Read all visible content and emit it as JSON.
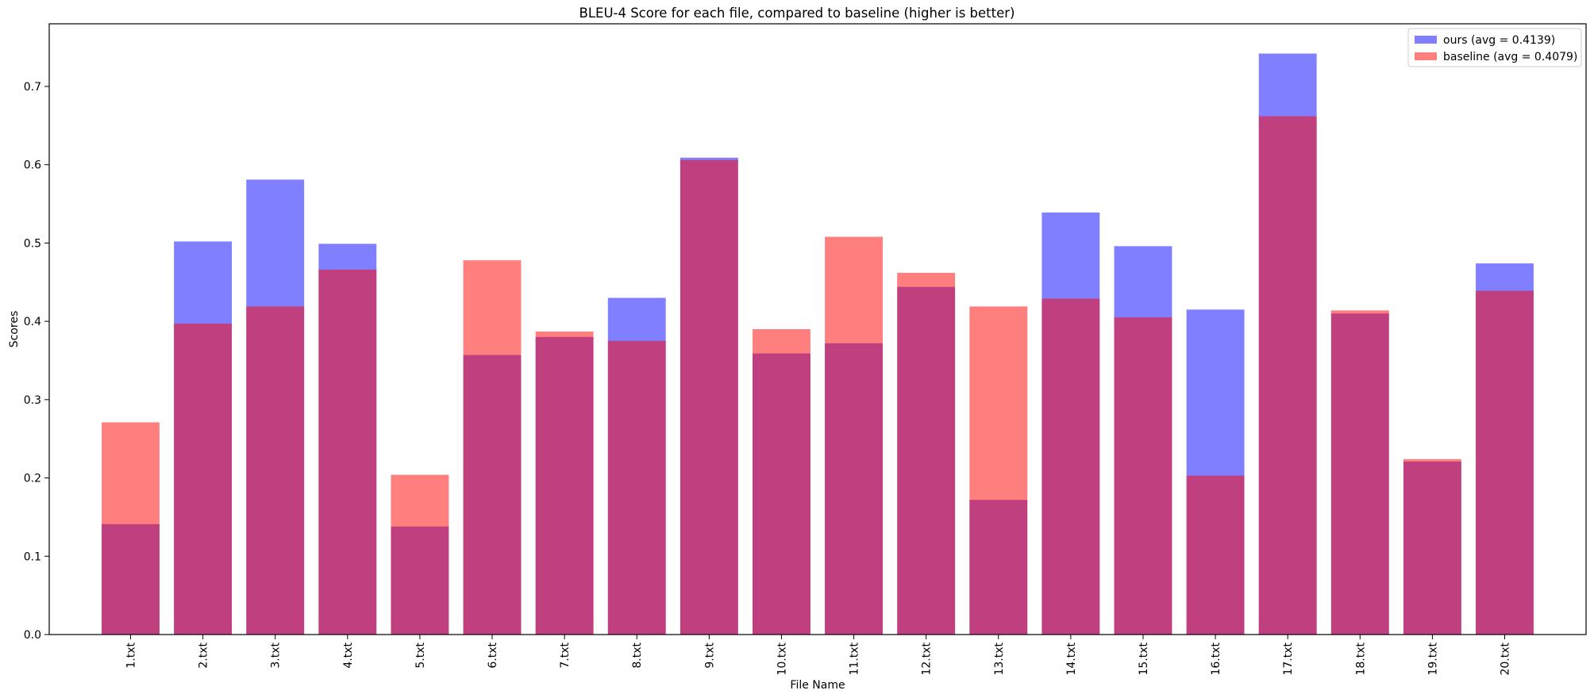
{
  "chart_data": {
    "type": "bar",
    "title": "BLEU-4 Score for each file, compared to baseline (higher is better)",
    "xlabel": "File Name",
    "ylabel": "Scores",
    "ylim": [
      0,
      0.78
    ],
    "yticks": [
      "0.0",
      "0.1",
      "0.2",
      "0.3",
      "0.4",
      "0.5",
      "0.6",
      "0.7"
    ],
    "grid": false,
    "legend_position": "top-right",
    "categories": [
      "1.txt",
      "2.txt",
      "3.txt",
      "4.txt",
      "5.txt",
      "6.txt",
      "7.txt",
      "8.txt",
      "9.txt",
      "10.txt",
      "11.txt",
      "12.txt",
      "13.txt",
      "14.txt",
      "15.txt",
      "16.txt",
      "17.txt",
      "18.txt",
      "19.txt",
      "20.txt"
    ],
    "series": [
      {
        "name": "ours (avg = 0.4139)",
        "color": "#0000ff",
        "opacity": 0.5,
        "values": [
          0.141,
          0.502,
          0.581,
          0.499,
          0.138,
          0.357,
          0.38,
          0.43,
          0.609,
          0.359,
          0.372,
          0.444,
          0.172,
          0.539,
          0.496,
          0.415,
          0.742,
          0.41,
          0.221,
          0.474
        ]
      },
      {
        "name": "baseline (avg = 0.4079)",
        "color": "#ff0000",
        "opacity": 0.5,
        "values": [
          0.271,
          0.397,
          0.419,
          0.466,
          0.204,
          0.478,
          0.387,
          0.375,
          0.606,
          0.39,
          0.508,
          0.462,
          0.419,
          0.429,
          0.405,
          0.203,
          0.662,
          0.414,
          0.224,
          0.439
        ]
      }
    ]
  }
}
